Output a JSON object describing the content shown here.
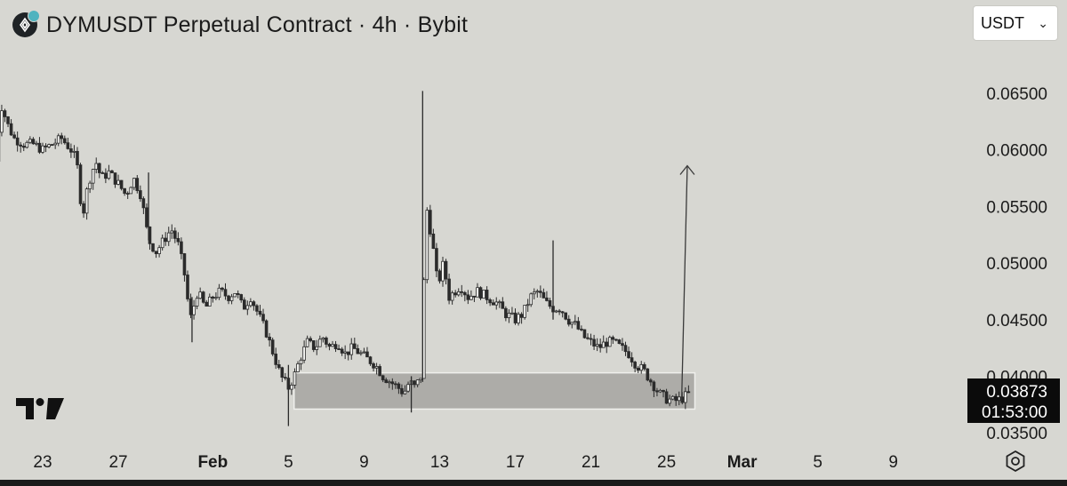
{
  "header": {
    "title": "DYMUSDT Perpetual Contract · 4h · Bybit",
    "currency": "USDT"
  },
  "icons": {
    "symbol": "dymension-coin-icon",
    "dropdown": "chevron-down-icon",
    "logo": "tradingview-logo-icon",
    "settings": "settings-icon"
  },
  "colors": {
    "background": "#d7d7d2",
    "candle": "#2b2b2b",
    "zone": "#a9a8a4",
    "price_label_bg": "#0b0b0b",
    "price_label_text": "#ffffff"
  },
  "chart_data": {
    "type": "candlestick",
    "title": "DYMUSDT Perpetual Contract · 4h · Bybit",
    "y_ticks": [
      "0.06500",
      "0.06000",
      "0.05500",
      "0.05000",
      "0.04500",
      "0.04000",
      "0.03500"
    ],
    "y_tick_values": [
      0.065,
      0.06,
      0.055,
      0.05,
      0.045,
      0.04,
      0.035
    ],
    "ylim": [
      0.0347,
      0.0668
    ],
    "x_ticks": [
      "23",
      "27",
      "Feb",
      "5",
      "9",
      "13",
      "17",
      "21",
      "25",
      "Mar",
      "5",
      "9"
    ],
    "x_tick_days": [
      0,
      4,
      9,
      13,
      17,
      21,
      25,
      29,
      33,
      37,
      41,
      45
    ],
    "bold_x_ticks": [
      "Feb",
      "Mar"
    ],
    "last_price": "0.03873",
    "countdown": "01:53:00",
    "grid": false,
    "support_zone": {
      "from_day": 13.3,
      "to_day": 34.5,
      "low": 0.0371,
      "high": 0.0403
    },
    "projection_arrow": {
      "from_day": 33.8,
      "from_price": 0.0378,
      "to_day": 34.1,
      "to_price": 0.0586
    },
    "price_path": [
      [
        -2.5,
        0.059
      ],
      [
        -2.2,
        0.064
      ],
      [
        -1.8,
        0.062
      ],
      [
        -1.5,
        0.061
      ],
      [
        -1.0,
        0.0605
      ],
      [
        -0.5,
        0.0605
      ],
      [
        0.0,
        0.06
      ],
      [
        0.5,
        0.0605
      ],
      [
        1.0,
        0.061
      ],
      [
        1.5,
        0.06
      ],
      [
        1.8,
        0.059
      ],
      [
        2.1,
        0.054
      ],
      [
        2.4,
        0.057
      ],
      [
        2.8,
        0.059
      ],
      [
        3.1,
        0.0575
      ],
      [
        3.5,
        0.058
      ],
      [
        4.0,
        0.057
      ],
      [
        4.4,
        0.056
      ],
      [
        4.8,
        0.0575
      ],
      [
        5.2,
        0.056
      ],
      [
        5.6,
        0.052
      ],
      [
        6.0,
        0.051
      ],
      [
        6.4,
        0.052
      ],
      [
        6.8,
        0.053
      ],
      [
        7.2,
        0.0515
      ],
      [
        7.5,
        0.049
      ],
      [
        7.8,
        0.045
      ],
      [
        8.2,
        0.0475
      ],
      [
        8.6,
        0.046
      ],
      [
        9.0,
        0.047
      ],
      [
        9.4,
        0.0475
      ],
      [
        9.8,
        0.047
      ],
      [
        10.2,
        0.0475
      ],
      [
        10.6,
        0.046
      ],
      [
        11.0,
        0.047
      ],
      [
        11.4,
        0.0455
      ],
      [
        11.8,
        0.044
      ],
      [
        12.2,
        0.042
      ],
      [
        12.6,
        0.04
      ],
      [
        13.0,
        0.039
      ],
      [
        13.3,
        0.04
      ],
      [
        13.6,
        0.0415
      ],
      [
        14.0,
        0.043
      ],
      [
        14.4,
        0.0425
      ],
      [
        14.8,
        0.0435
      ],
      [
        15.2,
        0.0425
      ],
      [
        15.6,
        0.043
      ],
      [
        16.0,
        0.042
      ],
      [
        16.4,
        0.0425
      ],
      [
        16.8,
        0.042
      ],
      [
        17.2,
        0.0415
      ],
      [
        17.6,
        0.041
      ],
      [
        18.0,
        0.04
      ],
      [
        18.4,
        0.0395
      ],
      [
        18.8,
        0.039
      ],
      [
        19.1,
        0.0385
      ],
      [
        19.4,
        0.0395
      ],
      [
        19.7,
        0.039
      ],
      [
        20.0,
        0.04
      ],
      [
        20.3,
        0.055
      ],
      [
        20.6,
        0.052
      ],
      [
        20.9,
        0.048
      ],
      [
        21.2,
        0.05
      ],
      [
        21.5,
        0.047
      ],
      [
        21.8,
        0.0475
      ],
      [
        22.1,
        0.048
      ],
      [
        22.5,
        0.047
      ],
      [
        23.0,
        0.0475
      ],
      [
        23.5,
        0.047
      ],
      [
        24.0,
        0.0465
      ],
      [
        24.5,
        0.0455
      ],
      [
        25.0,
        0.045
      ],
      [
        25.4,
        0.0455
      ],
      [
        25.8,
        0.047
      ],
      [
        26.2,
        0.0475
      ],
      [
        26.6,
        0.0465
      ],
      [
        27.0,
        0.046
      ],
      [
        27.4,
        0.046
      ],
      [
        27.8,
        0.045
      ],
      [
        28.2,
        0.0445
      ],
      [
        28.6,
        0.0435
      ],
      [
        29.0,
        0.043
      ],
      [
        29.4,
        0.0425
      ],
      [
        29.8,
        0.043
      ],
      [
        30.2,
        0.043
      ],
      [
        30.6,
        0.0425
      ],
      [
        31.0,
        0.042
      ],
      [
        31.4,
        0.041
      ],
      [
        31.8,
        0.0405
      ],
      [
        32.2,
        0.0395
      ],
      [
        32.6,
        0.0385
      ],
      [
        33.0,
        0.038
      ],
      [
        33.4,
        0.0378
      ],
      [
        33.8,
        0.038
      ],
      [
        34.2,
        0.0385
      ]
    ],
    "spikes": [
      {
        "day": 20.1,
        "high": 0.0652,
        "low": 0.0395
      },
      {
        "day": 27.0,
        "high": 0.052,
        "low": 0.045
      },
      {
        "day": 5.6,
        "high": 0.058,
        "low": 0.052
      },
      {
        "day": 7.9,
        "high": 0.047,
        "low": 0.043
      },
      {
        "day": 13.0,
        "high": 0.041,
        "low": 0.0356
      },
      {
        "day": 19.5,
        "high": 0.04,
        "low": 0.0368
      }
    ]
  }
}
